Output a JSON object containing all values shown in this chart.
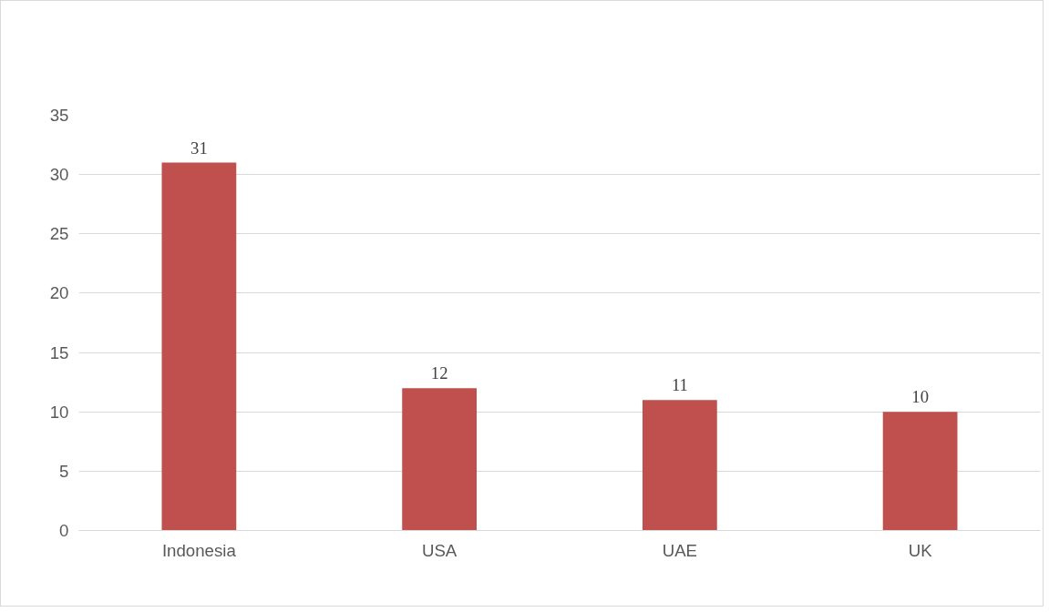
{
  "chart_data": {
    "type": "bar",
    "categories": [
      "Indonesia",
      "USA",
      "UAE",
      "UK"
    ],
    "values": [
      31,
      12,
      11,
      10
    ],
    "color": "#c0504d",
    "ylim": [
      0,
      35
    ],
    "yticks": [
      0,
      5,
      10,
      15,
      20,
      25,
      30,
      35
    ],
    "grid": "y",
    "data_labels": true
  }
}
